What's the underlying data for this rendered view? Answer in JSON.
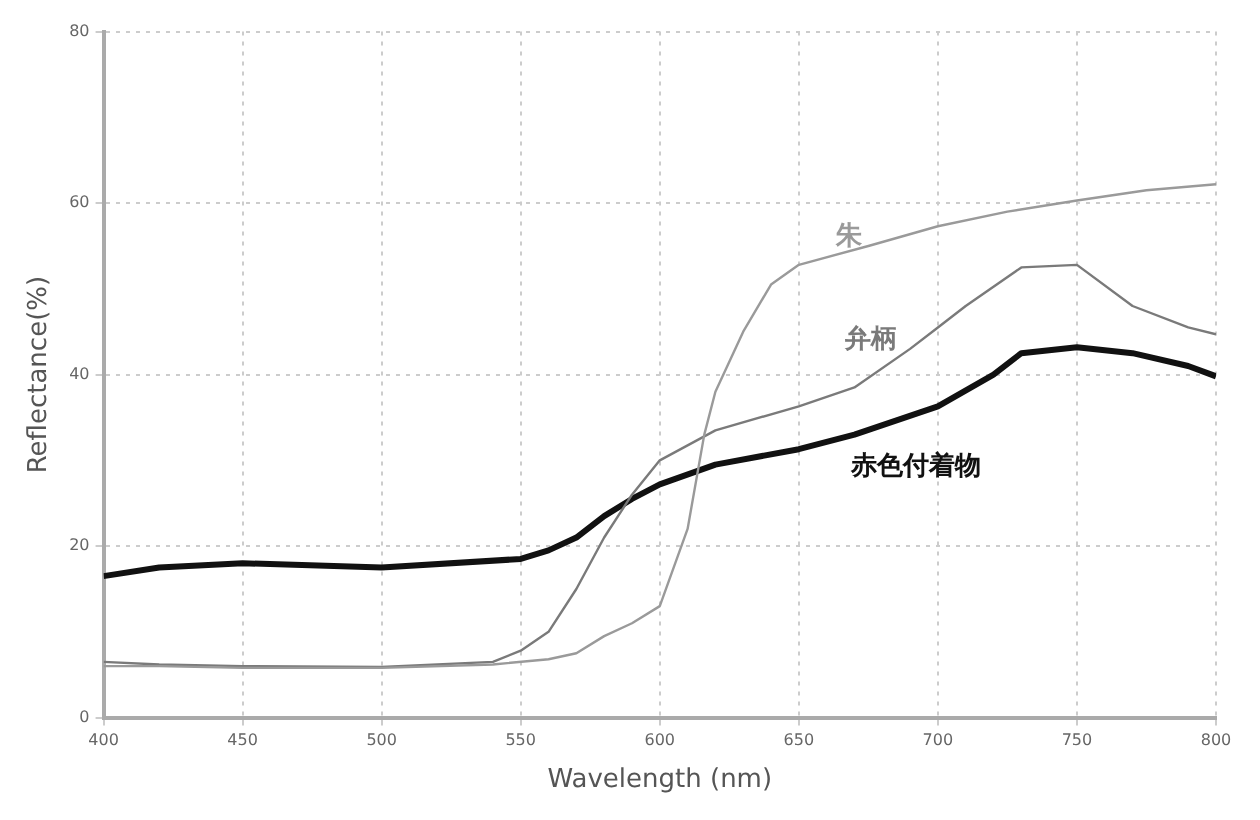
{
  "chart_data": {
    "type": "line",
    "xlabel": "Wavelength (nm)",
    "ylabel": "Reflectance(%)",
    "xlim": [
      400,
      800
    ],
    "xticks": [
      400,
      450,
      500,
      550,
      600,
      650,
      700,
      750,
      800
    ],
    "ylim": [
      0,
      80
    ],
    "yticks": [
      0,
      20,
      40,
      60,
      80
    ],
    "grid": true,
    "legend": false,
    "marker": "none",
    "line_style": "solid",
    "series": [
      {
        "name": "朱",
        "color": "#9a9a9a",
        "x": [
          400,
          420,
          450,
          500,
          540,
          560,
          570,
          580,
          590,
          600,
          610,
          616,
          620,
          630,
          640,
          650,
          675,
          700,
          725,
          750,
          775,
          800
        ],
        "values": [
          6,
          6,
          5.8,
          5.8,
          6.2,
          6.8,
          7.5,
          9.5,
          11,
          13,
          22,
          33,
          38,
          45,
          50.5,
          52.8,
          55,
          57.3,
          59,
          60.3,
          61.5,
          62.2
        ]
      },
      {
        "name": "弁柄",
        "color": "#7a7a7a",
        "x": [
          400,
          420,
          450,
          500,
          540,
          550,
          560,
          570,
          580,
          590,
          600,
          620,
          650,
          670,
          690,
          700,
          710,
          730,
          750,
          770,
          790,
          800
        ],
        "values": [
          6.5,
          6.2,
          6,
          5.9,
          6.5,
          7.8,
          10,
          15,
          21,
          26,
          30,
          33.5,
          36.3,
          38.5,
          43,
          45.5,
          48,
          52.5,
          52.8,
          48,
          45.5,
          44.7
        ]
      },
      {
        "name": "赤色付着物",
        "color": "#111111",
        "x": [
          400,
          420,
          450,
          500,
          550,
          560,
          570,
          580,
          590,
          600,
          620,
          650,
          670,
          700,
          720,
          730,
          750,
          770,
          790,
          800
        ],
        "values": [
          16.5,
          17.5,
          18,
          17.5,
          18.5,
          19.5,
          21,
          23.5,
          25.5,
          27.2,
          29.5,
          31.3,
          33,
          36.3,
          40,
          42.5,
          43.2,
          42.5,
          41,
          39.8
        ]
      }
    ]
  }
}
